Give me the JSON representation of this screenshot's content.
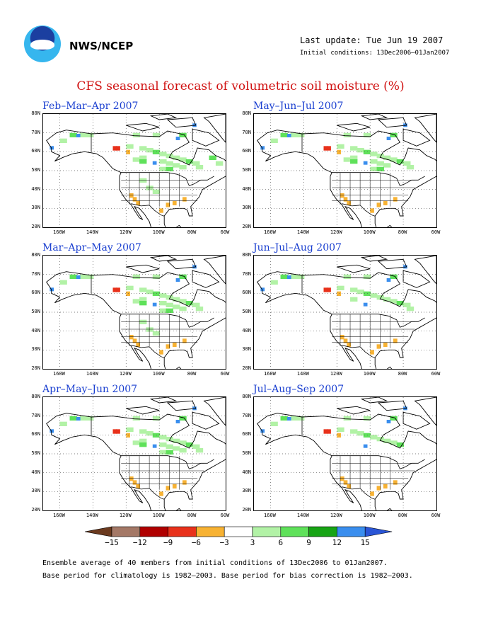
{
  "header": {
    "org": "NWS/NCEP",
    "last_update": "Last update: Tue Jun 19 2007",
    "initial_conditions": "Initial conditions: 13Dec2006–01Jan2007"
  },
  "title": "CFS seasonal forecast of volumetric soil moisture (%)",
  "axes": {
    "lat_labels": [
      "80N",
      "70N",
      "60N",
      "50N",
      "40N",
      "30N",
      "20N"
    ],
    "lon_labels": [
      "160W",
      "140W",
      "120W",
      "100W",
      "80W",
      "60W"
    ]
  },
  "panels": [
    {
      "id": "p1",
      "label": "Feb–Mar–Apr 2007",
      "green_level": 1.0
    },
    {
      "id": "p2",
      "label": "May–Jun–Jul 2007",
      "green_level": 0.8
    },
    {
      "id": "p3",
      "label": "Mar–Apr–May 2007",
      "green_level": 0.95
    },
    {
      "id": "p4",
      "label": "Jun–Jul–Aug 2007",
      "green_level": 0.6
    },
    {
      "id": "p5",
      "label": "Apr–May–Jun 2007",
      "green_level": 0.85
    },
    {
      "id": "p6",
      "label": "Jul–Aug–Sep 2007",
      "green_level": 0.5
    }
  ],
  "colorbar": {
    "colors": [
      "#6b3a1e",
      "#a47866",
      "#b00000",
      "#e8311b",
      "#f7b233",
      "#ffffff",
      "#b2f2a6",
      "#5fe15a",
      "#17a415",
      "#3a8eee",
      "#2a55d6"
    ],
    "labels": [
      "−15",
      "−12",
      "−9",
      "−6",
      "−3",
      "3",
      "6",
      "9",
      "12",
      "15"
    ]
  },
  "footer": {
    "line1": "Ensemble average of 40 members from initial conditions of 13Dec2006 to 01Jan2007.",
    "line2": "Base period for climatology is 1982–2003. Base period for bias correction is 1982–2003."
  }
}
